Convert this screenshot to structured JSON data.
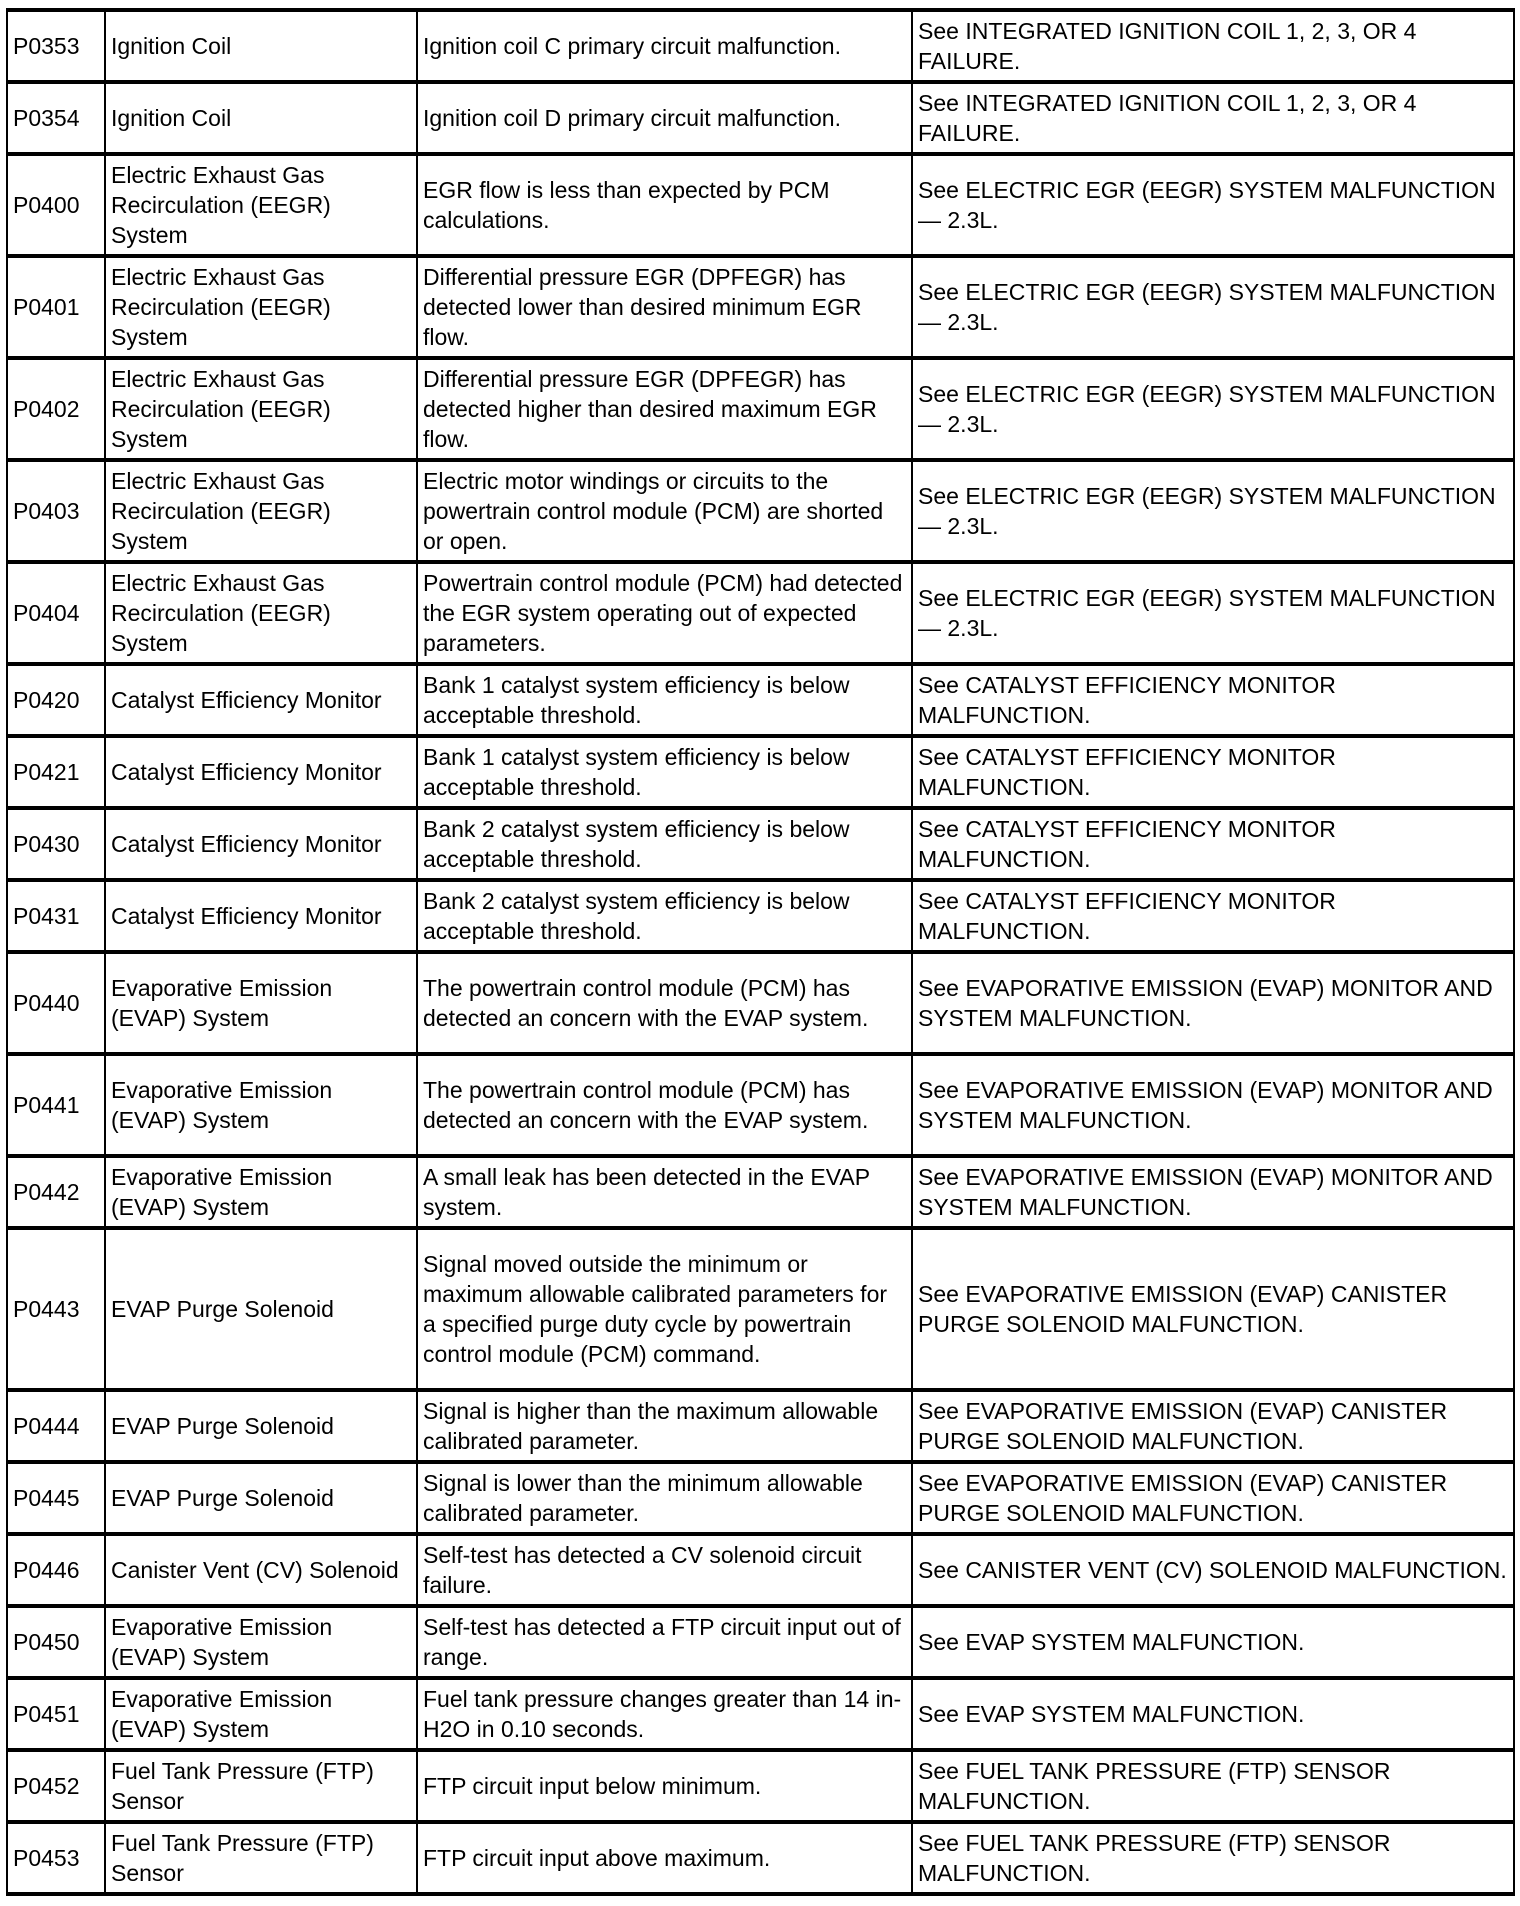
{
  "rows": [
    {
      "code": "P0353",
      "system": "Ignition Coil",
      "description": "Ignition coil C primary circuit malfunction.",
      "action": "See INTEGRATED IGNITION COIL 1, 2, 3, OR 4 FAILURE.",
      "lines": 2
    },
    {
      "code": "P0354",
      "system": "Ignition Coil",
      "description": "Ignition coil D primary circuit malfunction.",
      "action": "See INTEGRATED IGNITION COIL 1, 2, 3, OR 4 FAILURE.",
      "lines": 2
    },
    {
      "code": "P0400",
      "system": "Electric Exhaust Gas Recirculation (EEGR) System",
      "description": "EGR flow is less than expected by PCM calculations.",
      "action": "See ELECTRIC EGR (EEGR) SYSTEM MALFUNCTION — 2.3L.",
      "lines": 3
    },
    {
      "code": "P0401",
      "system": "Electric Exhaust Gas Recirculation (EEGR) System",
      "description": "Differential pressure EGR (DPFEGR) has detected lower than desired minimum EGR flow.",
      "action": "See ELECTRIC EGR (EEGR) SYSTEM MALFUNCTION — 2.3L.",
      "lines": 3
    },
    {
      "code": "P0402",
      "system": "Electric Exhaust Gas Recirculation (EEGR) System",
      "description": "Differential pressure EGR (DPFEGR) has detected higher than desired maximum EGR flow.",
      "action": "See ELECTRIC EGR (EEGR) SYSTEM MALFUNCTION — 2.3L.",
      "lines": 3
    },
    {
      "code": "P0403",
      "system": "Electric Exhaust Gas Recirculation (EEGR) System",
      "description": "Electric motor windings or circuits to the powertrain control module (PCM) are shorted or open.",
      "action": "See ELECTRIC EGR (EEGR) SYSTEM MALFUNCTION — 2.3L.",
      "lines": 3
    },
    {
      "code": "P0404",
      "system": "Electric Exhaust Gas Recirculation (EEGR) System",
      "description": "Powertrain control module (PCM) had detected the EGR system operating out of expected parameters.",
      "action": "See ELECTRIC EGR (EEGR) SYSTEM MALFUNCTION — 2.3L.",
      "lines": 3
    },
    {
      "code": "P0420",
      "system": "Catalyst Efficiency Monitor",
      "description": "Bank 1 catalyst system efficiency is below acceptable threshold.",
      "action": "See CATALYST EFFICIENCY MONITOR MALFUNCTION.",
      "lines": 2
    },
    {
      "code": "P0421",
      "system": "Catalyst Efficiency Monitor",
      "description": "Bank 1 catalyst system efficiency is below acceptable threshold.",
      "action": "See CATALYST EFFICIENCY MONITOR MALFUNCTION.",
      "lines": 2
    },
    {
      "code": "P0430",
      "system": "Catalyst Efficiency Monitor",
      "description": "Bank 2 catalyst system efficiency is below acceptable threshold.",
      "action": "See CATALYST EFFICIENCY MONITOR MALFUNCTION.",
      "lines": 2
    },
    {
      "code": "P0431",
      "system": "Catalyst Efficiency Monitor",
      "description": "Bank 2 catalyst system efficiency is below acceptable threshold.",
      "action": "See CATALYST EFFICIENCY MONITOR MALFUNCTION.",
      "lines": 2
    },
    {
      "code": "P0440",
      "system": "Evaporative Emission (EVAP) System",
      "description": "The powertrain control module (PCM) has detected an concern with the EVAP system.",
      "action": "See EVAPORATIVE EMISSION (EVAP) MONITOR AND SYSTEM MALFUNCTION.",
      "lines": 3
    },
    {
      "code": "P0441",
      "system": "Evaporative Emission (EVAP) System",
      "description": "The powertrain control module (PCM) has detected an concern with the EVAP system.",
      "action": "See EVAPORATIVE EMISSION (EVAP) MONITOR AND SYSTEM MALFUNCTION.",
      "lines": 3
    },
    {
      "code": "P0442",
      "system": "Evaporative Emission (EVAP) System",
      "description": "A small leak has been detected in the EVAP system.",
      "action": "See EVAPORATIVE EMISSION (EVAP) MONITOR AND SYSTEM MALFUNCTION.",
      "lines": 2
    },
    {
      "code": "P0443",
      "system": "EVAP Purge Solenoid",
      "description": "Signal moved outside the minimum or maximum allowable calibrated parameters for a specified purge duty cycle by powertrain control module (PCM) command.",
      "action": "See EVAPORATIVE EMISSION (EVAP) CANISTER PURGE SOLENOID MALFUNCTION.",
      "lines": 5
    },
    {
      "code": "P0444",
      "system": "EVAP Purge Solenoid",
      "description": "Signal is higher than the maximum allowable calibrated parameter.",
      "action": "See EVAPORATIVE EMISSION (EVAP) CANISTER PURGE SOLENOID MALFUNCTION.",
      "lines": 2
    },
    {
      "code": "P0445",
      "system": "EVAP Purge Solenoid",
      "description": "Signal is lower than the minimum allowable calibrated parameter.",
      "action": "See EVAPORATIVE EMISSION (EVAP) CANISTER PURGE SOLENOID MALFUNCTION.",
      "lines": 2
    },
    {
      "code": "P0446",
      "system": "Canister Vent (CV) Solenoid",
      "description": "Self-test has detected a CV solenoid circuit failure.",
      "action": "See CANISTER VENT (CV) SOLENOID MALFUNCTION.",
      "lines": 2
    },
    {
      "code": "P0450",
      "system": "Evaporative Emission (EVAP) System",
      "description": "Self-test has detected a FTP circuit input out of range.",
      "action": "See EVAP SYSTEM MALFUNCTION.",
      "lines": 2
    },
    {
      "code": "P0451",
      "system": "Evaporative Emission (EVAP) System",
      "description": "Fuel tank pressure changes greater than 14 in-H2O in 0.10 seconds.",
      "action": "See EVAP SYSTEM MALFUNCTION.",
      "lines": 2
    },
    {
      "code": "P0452",
      "system": "Fuel Tank Pressure (FTP) Sensor",
      "description": "FTP circuit input below minimum.",
      "action": "See FUEL TANK PRESSURE (FTP) SENSOR MALFUNCTION.",
      "lines": 2
    },
    {
      "code": "P0453",
      "system": "Fuel Tank Pressure (FTP) Sensor",
      "description": "FTP circuit input above maximum.",
      "action": "See FUEL TANK PRESSURE (FTP) SENSOR MALFUNCTION.",
      "lines": 2
    }
  ]
}
